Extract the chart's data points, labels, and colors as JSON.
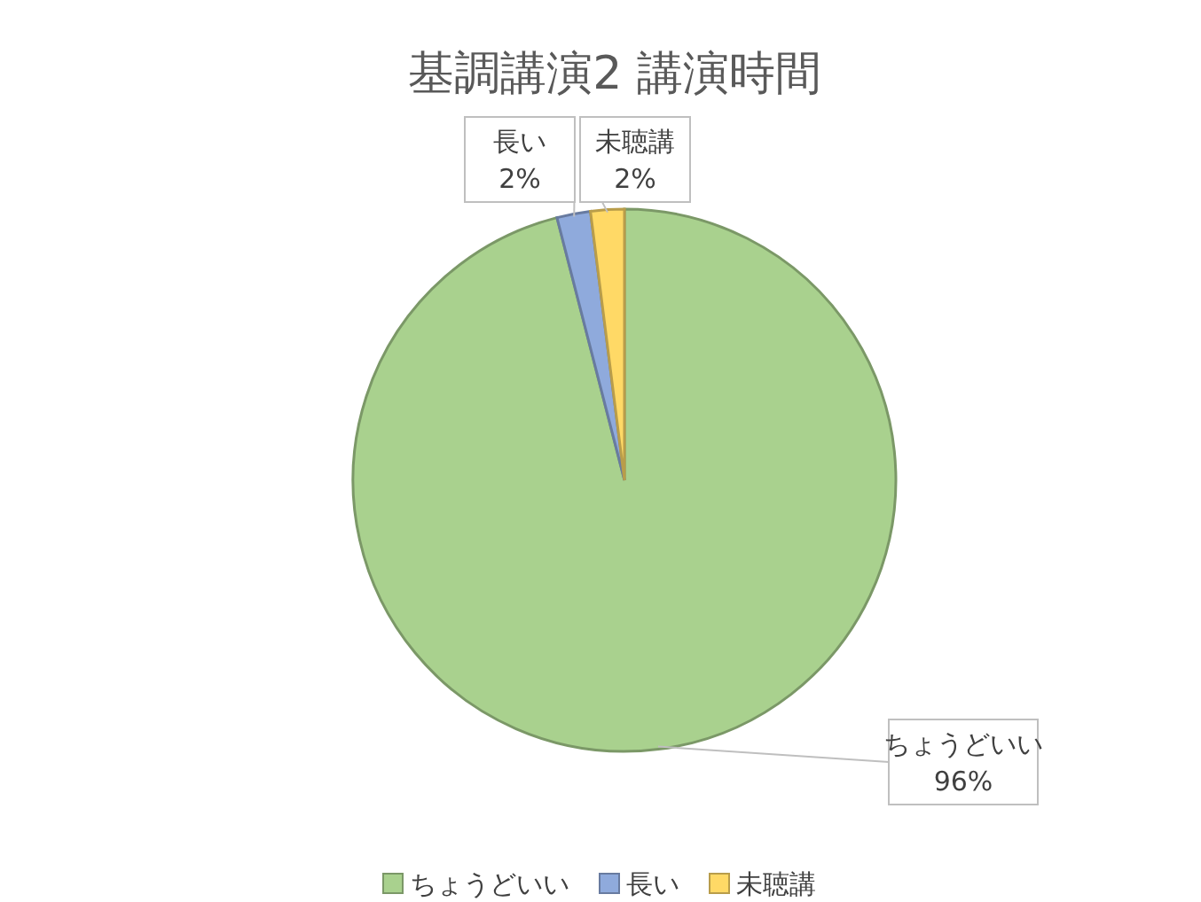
{
  "chart_data": {
    "type": "pie",
    "title": "基調講演2 講演時間",
    "categories": [
      "ちょうどいい",
      "長い",
      "未聴講"
    ],
    "values": [
      96,
      2,
      2
    ],
    "colors": [
      "#a9d18e",
      "#8faadc",
      "#ffd966"
    ],
    "value_labels": [
      "96%",
      "2%",
      "2%"
    ],
    "legend": "bottom"
  }
}
